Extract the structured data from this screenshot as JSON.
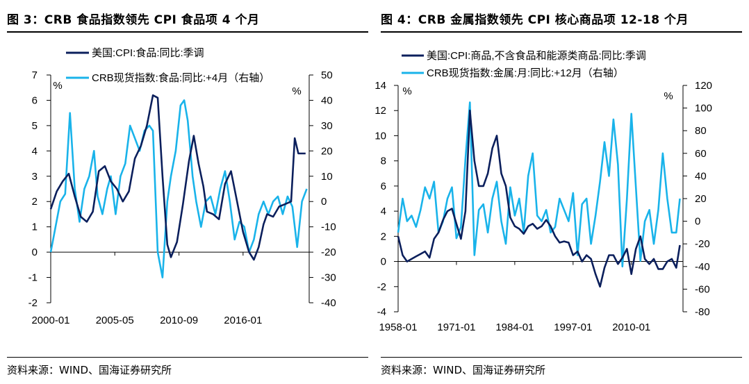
{
  "panels": [
    {
      "title": "图 3：CRB 食品指数领先 CPI 食品项 4 个月",
      "source": "资料来源：WIND、国海证券研究所",
      "left_unit": "%",
      "right_unit": "%",
      "colors": {
        "dark": "#0b1f5c",
        "light": "#19b3ea"
      }
    },
    {
      "title": "图 4：CRB 金属指数领先 CPI 核心商品项 12-18 个月",
      "source": "资料来源：WIND、国海证券研究所",
      "left_unit": "%",
      "right_unit": "%",
      "colors": {
        "dark": "#0b1f5c",
        "light": "#19b3ea"
      }
    }
  ],
  "chart_data": [
    {
      "type": "line",
      "title": "CRB 食品指数领先 CPI 食品项 4 个月",
      "x_tick_labels": [
        "2000-01",
        "2005-05",
        "2010-09",
        "2016-01"
      ],
      "x_range": [
        2000.0,
        2021.5
      ],
      "x_ticks": [
        2000.0,
        2005.33,
        2010.67,
        2016.0
      ],
      "left_axis": {
        "range": [
          -2,
          7
        ],
        "ticks": [
          -2,
          -1,
          0,
          1,
          2,
          3,
          4,
          5,
          6,
          7
        ]
      },
      "right_axis": {
        "range": [
          -40,
          50
        ],
        "ticks": [
          -40,
          -30,
          -20,
          -10,
          0,
          10,
          20,
          30,
          40,
          50
        ]
      },
      "series": [
        {
          "name": "美国:CPI:食品:同比:季调",
          "axis": "left",
          "x": [
            2000.0,
            2000.5,
            2001.0,
            2001.5,
            2002.0,
            2002.5,
            2003.0,
            2003.5,
            2004.0,
            2004.5,
            2005.0,
            2005.5,
            2006.0,
            2006.5,
            2007.0,
            2007.5,
            2008.0,
            2008.5,
            2008.9,
            2009.3,
            2009.7,
            2010.0,
            2010.5,
            2011.0,
            2011.5,
            2011.9,
            2012.3,
            2012.7,
            2013.0,
            2013.5,
            2014.0,
            2014.5,
            2015.0,
            2015.5,
            2016.0,
            2016.5,
            2016.9,
            2017.3,
            2017.7,
            2018.0,
            2018.5,
            2019.0,
            2019.5,
            2020.0,
            2020.3,
            2020.6,
            2020.9,
            2021.2
          ],
          "values": [
            1.7,
            2.4,
            2.8,
            3.1,
            2.2,
            1.4,
            1.2,
            1.6,
            3.2,
            3.4,
            2.8,
            2.5,
            2.0,
            2.4,
            3.7,
            4.2,
            5.0,
            6.2,
            6.1,
            3.0,
            0.3,
            -0.2,
            0.4,
            1.9,
            3.6,
            4.6,
            3.5,
            2.6,
            1.6,
            1.5,
            1.3,
            2.7,
            3.2,
            2.0,
            0.8,
            0.0,
            -0.3,
            0.2,
            1.1,
            1.5,
            1.4,
            1.8,
            1.9,
            2.0,
            4.5,
            3.9,
            3.9,
            3.9
          ]
        },
        {
          "name": "CRB现货指数:食品:同比:+4月（右轴）",
          "axis": "right",
          "x": [
            2000.0,
            2000.4,
            2000.8,
            2001.2,
            2001.6,
            2002.0,
            2002.4,
            2002.8,
            2003.2,
            2003.6,
            2003.9,
            2004.3,
            2004.7,
            2005.0,
            2005.4,
            2005.8,
            2006.2,
            2006.6,
            2007.0,
            2007.4,
            2007.8,
            2008.2,
            2008.5,
            2008.9,
            2009.3,
            2009.7,
            2010.0,
            2010.4,
            2010.8,
            2011.1,
            2011.4,
            2011.8,
            2012.1,
            2012.5,
            2012.9,
            2013.3,
            2013.7,
            2014.1,
            2014.5,
            2014.9,
            2015.3,
            2015.7,
            2016.1,
            2016.5,
            2016.9,
            2017.3,
            2017.7,
            2018.1,
            2018.5,
            2018.9,
            2019.3,
            2019.7,
            2020.1,
            2020.5,
            2020.9,
            2021.3
          ],
          "values": [
            -20,
            -10,
            0,
            3,
            35,
            5,
            -8,
            5,
            10,
            20,
            2,
            -5,
            5,
            10,
            -5,
            10,
            15,
            30,
            25,
            20,
            28,
            30,
            28,
            -20,
            -30,
            0,
            10,
            20,
            38,
            40,
            32,
            10,
            0,
            -10,
            0,
            2,
            -5,
            5,
            12,
            0,
            -15,
            -8,
            -10,
            -20,
            -15,
            -5,
            0,
            -5,
            0,
            2,
            -5,
            2,
            -2,
            -18,
            0,
            5
          ]
        }
      ]
    },
    {
      "type": "line",
      "title": "CRB 金属指数领先 CPI 核心商品项 12-18 个月",
      "x_tick_labels": [
        "1958-01",
        "1971-01",
        "1984-01",
        "1997-01",
        "2010-01"
      ],
      "x_range": [
        1958.0,
        2021.5
      ],
      "x_ticks": [
        1958.0,
        1971.0,
        1984.0,
        1997.0,
        2010.0
      ],
      "left_axis": {
        "range": [
          -4,
          14
        ],
        "ticks": [
          -4,
          -2,
          0,
          2,
          4,
          6,
          8,
          10,
          12,
          14
        ]
      },
      "right_axis": {
        "range": [
          -80,
          120
        ],
        "ticks": [
          -80,
          -60,
          -40,
          -20,
          0,
          20,
          40,
          60,
          80,
          100,
          120
        ]
      },
      "series": [
        {
          "name": "美国:CPI:商品,不含食品和能源类商品:同比:季调",
          "axis": "left",
          "x": [
            1958.0,
            1959.0,
            1960.0,
            1961.0,
            1962.0,
            1963.0,
            1964.0,
            1965.0,
            1966.0,
            1967.0,
            1968.0,
            1969.0,
            1970.0,
            1971.0,
            1972.0,
            1973.0,
            1974.0,
            1975.0,
            1976.0,
            1977.0,
            1978.0,
            1979.0,
            1980.0,
            1981.0,
            1982.0,
            1983.0,
            1984.0,
            1985.0,
            1986.0,
            1987.0,
            1988.0,
            1989.0,
            1990.0,
            1991.0,
            1992.0,
            1993.0,
            1994.0,
            1995.0,
            1996.0,
            1997.0,
            1998.0,
            1999.0,
            2000.0,
            2001.0,
            2002.0,
            2003.0,
            2004.0,
            2005.0,
            2006.0,
            2007.0,
            2008.0,
            2009.0,
            2010.0,
            2011.0,
            2012.0,
            2013.0,
            2014.0,
            2015.0,
            2016.0,
            2017.0,
            2018.0,
            2019.0,
            2020.0,
            2020.8
          ],
          "values": [
            2.0,
            0.5,
            0.0,
            0.2,
            0.4,
            0.6,
            0.8,
            0.3,
            1.8,
            2.3,
            3.3,
            4.0,
            4.2,
            3.0,
            1.8,
            4.0,
            12.0,
            8.0,
            6.0,
            6.0,
            7.0,
            9.0,
            10.0,
            7.0,
            6.0,
            3.5,
            2.8,
            2.6,
            2.2,
            2.8,
            3.0,
            2.6,
            2.8,
            3.3,
            2.8,
            2.0,
            1.5,
            1.6,
            1.5,
            0.5,
            0.8,
            0.0,
            0.5,
            0.2,
            -1.0,
            -2.0,
            -0.5,
            0.5,
            0.5,
            -0.2,
            0.3,
            1.0,
            -1.0,
            1.0,
            2.0,
            0.2,
            -0.2,
            0.2,
            -0.6,
            -0.6,
            0.0,
            0.2,
            -0.5,
            1.3
          ]
        },
        {
          "name": "CRB现货指数:金属:月:同比:+12月（右轴）",
          "axis": "right",
          "x": [
            1958.0,
            1959.0,
            1960.0,
            1961.0,
            1962.0,
            1963.0,
            1964.0,
            1965.0,
            1966.0,
            1967.0,
            1968.0,
            1969.0,
            1970.0,
            1971.0,
            1972.0,
            1973.0,
            1974.0,
            1975.0,
            1976.0,
            1977.0,
            1978.0,
            1979.0,
            1980.0,
            1981.0,
            1982.0,
            1983.0,
            1984.0,
            1985.0,
            1986.0,
            1987.0,
            1988.0,
            1989.0,
            1990.0,
            1991.0,
            1992.0,
            1993.0,
            1994.0,
            1995.0,
            1996.0,
            1997.0,
            1998.0,
            1999.0,
            2000.0,
            2001.0,
            2002.0,
            2003.0,
            2004.0,
            2005.0,
            2006.0,
            2007.0,
            2008.0,
            2009.0,
            2010.0,
            2011.0,
            2012.0,
            2013.0,
            2014.0,
            2015.0,
            2016.0,
            2017.0,
            2018.0,
            2019.0,
            2020.0,
            2020.8
          ],
          "values": [
            -10,
            20,
            0,
            5,
            -5,
            10,
            30,
            20,
            35,
            -10,
            0,
            20,
            30,
            -15,
            -5,
            55,
            105,
            -30,
            10,
            15,
            -10,
            20,
            35,
            0,
            -20,
            30,
            5,
            20,
            -10,
            40,
            60,
            5,
            0,
            10,
            -10,
            -5,
            20,
            10,
            0,
            25,
            -30,
            15,
            20,
            -20,
            5,
            35,
            70,
            40,
            90,
            50,
            -40,
            20,
            95,
            30,
            -35,
            0,
            10,
            -20,
            10,
            60,
            20,
            -10,
            -10,
            20
          ]
        }
      ]
    }
  ]
}
